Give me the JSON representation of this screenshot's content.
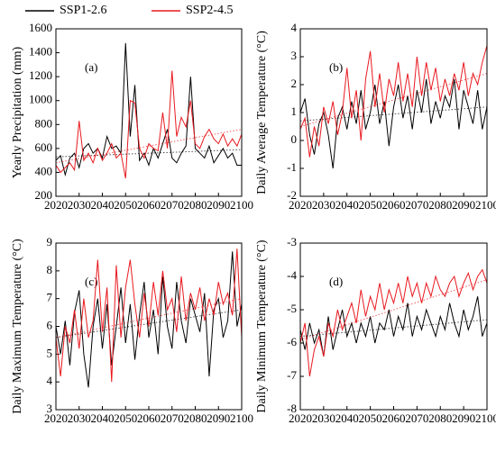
{
  "chart_data": [
    {
      "type": "line",
      "ylabel": "Yearly Precipitation (mm)",
      "panel_label": "(a)",
      "x": [
        2020,
        2022,
        2024,
        2026,
        2028,
        2030,
        2032,
        2034,
        2036,
        2038,
        2040,
        2042,
        2044,
        2046,
        2048,
        2050,
        2052,
        2054,
        2056,
        2058,
        2060,
        2062,
        2064,
        2066,
        2068,
        2070,
        2072,
        2074,
        2076,
        2078,
        2080,
        2082,
        2084,
        2086,
        2088,
        2090,
        2092,
        2094,
        2096,
        2098,
        2100
      ],
      "xlim": [
        2020,
        2100
      ],
      "xticks": [
        2020,
        2030,
        2040,
        2050,
        2060,
        2070,
        2080,
        2090,
        2100
      ],
      "ylim": [
        200,
        1600
      ],
      "yticks": [
        200,
        400,
        600,
        800,
        1000,
        1200,
        1400,
        1600
      ],
      "series": [
        {
          "name": "SSP1-2.6",
          "color": "#000000",
          "trend": [
            530,
            590
          ],
          "values": [
            500,
            540,
            380,
            520,
            560,
            440,
            600,
            640,
            560,
            600,
            520,
            700,
            600,
            620,
            560,
            1480,
            700,
            1130,
            500,
            560,
            460,
            600,
            520,
            640,
            760,
            520,
            480,
            560,
            620,
            1200,
            600,
            560,
            520,
            620,
            480,
            540,
            600,
            520,
            560,
            460,
            460
          ]
        },
        {
          "name": "SSP2-4.5",
          "color": "#e8191f",
          "trend": [
            480,
            760
          ],
          "values": [
            460,
            400,
            440,
            480,
            420,
            830,
            500,
            560,
            480,
            600,
            500,
            560,
            640,
            520,
            560,
            350,
            1000,
            980,
            600,
            520,
            640,
            600,
            580,
            900,
            600,
            1250,
            700,
            860,
            780,
            1000,
            640,
            600,
            700,
            760,
            680,
            640,
            720,
            620,
            680,
            620,
            720
          ]
        }
      ]
    },
    {
      "type": "line",
      "ylabel": "Daily Average Temperature (°C)",
      "panel_label": "(b)",
      "x": [
        2020,
        2022,
        2024,
        2026,
        2028,
        2030,
        2032,
        2034,
        2036,
        2038,
        2040,
        2042,
        2044,
        2046,
        2048,
        2050,
        2052,
        2054,
        2056,
        2058,
        2060,
        2062,
        2064,
        2066,
        2068,
        2070,
        2072,
        2074,
        2076,
        2078,
        2080,
        2082,
        2084,
        2086,
        2088,
        2090,
        2092,
        2094,
        2096,
        2098,
        2100
      ],
      "xlim": [
        2020,
        2100
      ],
      "xticks": [
        2020,
        2030,
        2040,
        2050,
        2060,
        2070,
        2080,
        2090,
        2100
      ],
      "ylim": [
        -2,
        4
      ],
      "yticks": [
        -2,
        -1,
        0,
        1,
        2,
        3,
        4
      ],
      "series": [
        {
          "color": "#000000",
          "trend": [
            0.7,
            1.2
          ],
          "values": [
            1.0,
            1.5,
            0.2,
            -0.5,
            0.6,
            1.0,
            0.2,
            -1.0,
            0.8,
            1.2,
            0.4,
            1.4,
            0.6,
            1.8,
            0.4,
            1.0,
            2.0,
            0.6,
            1.4,
            -0.2,
            1.2,
            2.0,
            0.8,
            1.6,
            0.4,
            1.8,
            1.0,
            2.2,
            0.6,
            1.4,
            0.8,
            1.6,
            1.2,
            2.2,
            0.4,
            1.8,
            1.2,
            0.6,
            1.8,
            0.4,
            1.2
          ]
        },
        {
          "color": "#e8191f",
          "trend": [
            0.5,
            2.4
          ],
          "values": [
            0.4,
            0.8,
            -0.6,
            0.5,
            -0.2,
            1.2,
            0.6,
            1.4,
            0.2,
            1.0,
            2.6,
            0.8,
            1.8,
            0.0,
            2.2,
            3.2,
            1.2,
            2.4,
            1.0,
            2.2,
            1.6,
            2.8,
            1.4,
            2.4,
            1.2,
            3.0,
            1.6,
            2.8,
            1.8,
            2.6,
            1.4,
            2.2,
            1.6,
            2.4,
            1.8,
            2.8,
            1.6,
            2.4,
            2.0,
            2.8,
            3.4
          ]
        }
      ]
    },
    {
      "type": "line",
      "ylabel": "Daily Maximum Temperature (°C)",
      "panel_label": "(c)",
      "x": [
        2020,
        2022,
        2024,
        2026,
        2028,
        2030,
        2032,
        2034,
        2036,
        2038,
        2040,
        2042,
        2044,
        2046,
        2048,
        2050,
        2052,
        2054,
        2056,
        2058,
        2060,
        2062,
        2064,
        2066,
        2068,
        2070,
        2072,
        2074,
        2076,
        2078,
        2080,
        2082,
        2084,
        2086,
        2088,
        2090,
        2092,
        2094,
        2096,
        2098,
        2100
      ],
      "xlim": [
        2020,
        2100
      ],
      "xticks": [
        2020,
        2030,
        2040,
        2050,
        2060,
        2070,
        2080,
        2090,
        2100
      ],
      "ylim": [
        3,
        9
      ],
      "yticks": [
        3,
        4,
        5,
        6,
        7,
        8,
        9
      ],
      "series": [
        {
          "color": "#000000",
          "trend": [
            5.6,
            6.6
          ],
          "values": [
            6.0,
            5.0,
            6.2,
            4.6,
            6.5,
            7.3,
            5.0,
            3.8,
            6.0,
            7.0,
            5.2,
            6.8,
            4.6,
            6.0,
            7.4,
            5.4,
            6.8,
            4.8,
            6.4,
            7.6,
            5.6,
            6.6,
            5.0,
            7.8,
            6.0,
            5.2,
            7.6,
            6.2,
            5.4,
            7.0,
            6.4,
            5.8,
            7.2,
            4.2,
            6.6,
            7.0,
            5.6,
            6.2,
            8.7,
            6.0,
            6.8
          ]
        },
        {
          "color": "#e8191f",
          "trend": [
            5.6,
            7.0
          ],
          "values": [
            5.6,
            4.2,
            6.0,
            5.4,
            6.6,
            5.2,
            7.0,
            5.6,
            6.2,
            8.4,
            5.8,
            7.4,
            4.0,
            8.2,
            5.6,
            7.4,
            8.4,
            6.8,
            5.6,
            7.2,
            6.0,
            7.6,
            6.4,
            8.0,
            6.6,
            7.0,
            5.8,
            7.8,
            6.2,
            7.2,
            6.6,
            7.4,
            6.2,
            7.0,
            6.4,
            7.6,
            6.8,
            7.2,
            6.4,
            8.8,
            5.6
          ]
        }
      ]
    },
    {
      "type": "line",
      "ylabel": "Daily Minimum Temperature (°C)",
      "panel_label": "(d)",
      "x": [
        2020,
        2022,
        2024,
        2026,
        2028,
        2030,
        2032,
        2034,
        2036,
        2038,
        2040,
        2042,
        2044,
        2046,
        2048,
        2050,
        2052,
        2054,
        2056,
        2058,
        2060,
        2062,
        2064,
        2066,
        2068,
        2070,
        2072,
        2074,
        2076,
        2078,
        2080,
        2082,
        2084,
        2086,
        2088,
        2090,
        2092,
        2094,
        2096,
        2098,
        2100
      ],
      "xlim": [
        2020,
        2100
      ],
      "xticks": [
        2020,
        2030,
        2040,
        2050,
        2060,
        2070,
        2080,
        2090,
        2100
      ],
      "ylim": [
        -8,
        -3
      ],
      "yticks": [
        -8,
        -7,
        -6,
        -5,
        -4,
        -3
      ],
      "series": [
        {
          "color": "#000000",
          "trend": [
            -5.8,
            -5.3
          ],
          "values": [
            -5.6,
            -6.2,
            -5.4,
            -6.0,
            -5.6,
            -6.4,
            -5.2,
            -6.2,
            -5.6,
            -5.0,
            -5.8,
            -5.4,
            -6.0,
            -5.4,
            -5.8,
            -5.2,
            -6.0,
            -5.4,
            -5.6,
            -5.0,
            -5.8,
            -5.2,
            -5.6,
            -4.8,
            -5.8,
            -5.2,
            -5.6,
            -5.0,
            -5.4,
            -5.8,
            -5.2,
            -5.6,
            -4.8,
            -5.4,
            -5.8,
            -5.0,
            -5.6,
            -5.2,
            -4.6,
            -5.8,
            -5.4
          ]
        },
        {
          "color": "#e8191f",
          "trend": [
            -5.9,
            -4.1
          ],
          "values": [
            -6.0,
            -5.4,
            -7.0,
            -6.2,
            -5.8,
            -6.4,
            -5.4,
            -5.8,
            -5.0,
            -5.6,
            -5.2,
            -4.8,
            -5.4,
            -4.4,
            -5.2,
            -4.6,
            -5.0,
            -4.2,
            -5.0,
            -4.4,
            -4.8,
            -4.2,
            -4.8,
            -4.0,
            -4.6,
            -4.2,
            -4.8,
            -4.2,
            -4.6,
            -4.0,
            -4.4,
            -4.6,
            -4.2,
            -4.0,
            -4.6,
            -4.2,
            -3.9,
            -4.4,
            -4.0,
            -3.8,
            -4.2
          ]
        }
      ]
    }
  ]
}
